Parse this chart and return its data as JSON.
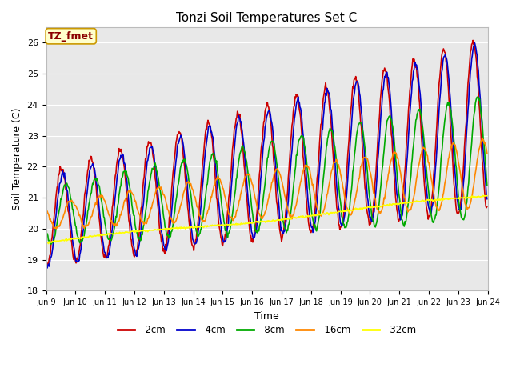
{
  "title": "Tonzi Soil Temperatures Set C",
  "xlabel": "Time",
  "ylabel": "Soil Temperature (C)",
  "ylim": [
    18.0,
    26.5
  ],
  "yticks": [
    18.0,
    19.0,
    20.0,
    21.0,
    22.0,
    23.0,
    24.0,
    25.0,
    26.0
  ],
  "annotation": "TZ_fmet",
  "plot_bg_color": "#e8e8e8",
  "fig_bg_color": "#ffffff",
  "lines": [
    {
      "label": "-2cm",
      "color": "#cc0000",
      "lw": 1.2
    },
    {
      "label": "-4cm",
      "color": "#0000cc",
      "lw": 1.2
    },
    {
      "label": "-8cm",
      "color": "#00aa00",
      "lw": 1.2
    },
    {
      "label": "-16cm",
      "color": "#ff8800",
      "lw": 1.2
    },
    {
      "label": "-32cm",
      "color": "#ffff00",
      "lw": 1.2
    }
  ],
  "xtick_labels": [
    "Jun 9",
    "Jun 10",
    "Jun 11",
    "Jun 12",
    "Jun 13",
    "Jun 14",
    "Jun 15",
    "Jun 16",
    "Jun 17",
    "Jun 18",
    "Jun 19",
    "Jun 20",
    "Jun 21",
    "Jun 22",
    "Jun 23",
    "Jun 24"
  ],
  "n_days": 15,
  "pts_per_day": 48,
  "figsize": [
    6.4,
    4.8
  ],
  "dpi": 100
}
